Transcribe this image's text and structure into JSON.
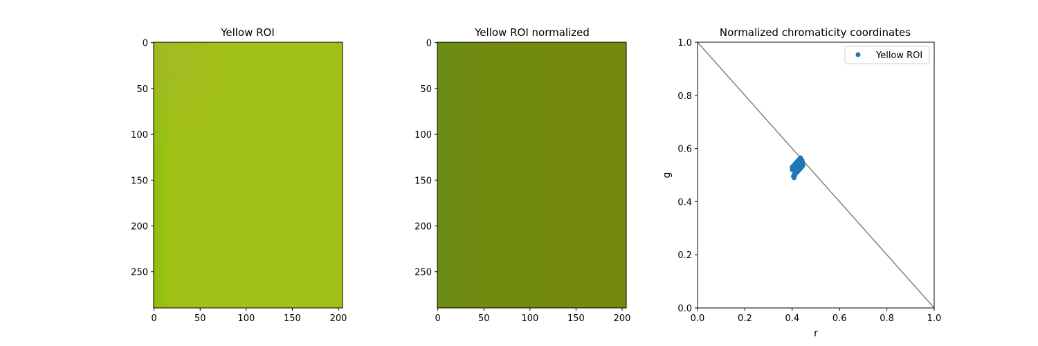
{
  "chart_data": [
    {
      "type": "heatmap",
      "title": "Yellow ROI",
      "xticks": [
        0,
        50,
        100,
        150,
        200
      ],
      "yticks": [
        0,
        50,
        100,
        150,
        200,
        250
      ],
      "xlim": [
        -0.5,
        204.5
      ],
      "ylim": [
        289.5,
        -0.5
      ],
      "colors": {
        "base": "#a2c116",
        "left_edge": "#90c00e",
        "top_left": "#a4b928",
        "bottom": "#9fbd12"
      }
    },
    {
      "type": "heatmap",
      "title": "Yellow ROI normalized",
      "xticks": [
        0,
        50,
        100,
        150,
        200
      ],
      "yticks": [
        0,
        50,
        100,
        150,
        200,
        250
      ],
      "xlim": [
        -0.5,
        204.5
      ],
      "ylim": [
        289.5,
        -0.5
      ],
      "colors": {
        "base": "#728a0f",
        "left_edge": "#6a8b14",
        "right_edge": "#748a0c"
      }
    },
    {
      "type": "scatter",
      "title": "Normalized chromaticity coordinates",
      "xlabel": "r",
      "ylabel": "g",
      "xlim": [
        0,
        1
      ],
      "ylim": [
        0,
        1
      ],
      "xticks": [
        0.0,
        0.2,
        0.4,
        0.6,
        0.8,
        1.0
      ],
      "yticks": [
        0.0,
        0.2,
        0.4,
        0.6,
        0.8,
        1.0
      ],
      "grid": false,
      "legend_position": "top-right",
      "line": {
        "x": [
          0,
          1
        ],
        "y": [
          1,
          0
        ],
        "color": "#808080"
      },
      "series": [
        {
          "name": "Yellow ROI",
          "color": "#1f77b4",
          "cluster": {
            "r_range": [
              0.4,
              0.45
            ],
            "g_range": [
              0.49,
              0.57
            ]
          },
          "points": [
            [
              0.42,
              0.53
            ],
            [
              0.425,
              0.535
            ],
            [
              0.43,
              0.54
            ],
            [
              0.435,
              0.545
            ],
            [
              0.415,
              0.525
            ],
            [
              0.41,
              0.52
            ],
            [
              0.405,
              0.525
            ],
            [
              0.4,
              0.52
            ],
            [
              0.4,
              0.53
            ],
            [
              0.405,
              0.535
            ],
            [
              0.41,
              0.54
            ],
            [
              0.415,
              0.545
            ],
            [
              0.42,
              0.55
            ],
            [
              0.425,
              0.555
            ],
            [
              0.43,
              0.56
            ],
            [
              0.435,
              0.565
            ],
            [
              0.44,
              0.55
            ],
            [
              0.44,
              0.54
            ],
            [
              0.44,
              0.53
            ],
            [
              0.435,
              0.525
            ],
            [
              0.43,
              0.52
            ],
            [
              0.425,
              0.515
            ],
            [
              0.42,
              0.51
            ],
            [
              0.415,
              0.51
            ],
            [
              0.41,
              0.505
            ],
            [
              0.405,
              0.495
            ],
            [
              0.408,
              0.49
            ],
            [
              0.412,
              0.5
            ],
            [
              0.418,
              0.518
            ],
            [
              0.428,
              0.528
            ],
            [
              0.432,
              0.532
            ],
            [
              0.438,
              0.538
            ],
            [
              0.445,
              0.535
            ],
            [
              0.445,
              0.545
            ],
            [
              0.442,
              0.555
            ],
            [
              0.426,
              0.548
            ],
            [
              0.418,
              0.538
            ],
            [
              0.412,
              0.528
            ],
            [
              0.422,
              0.522
            ],
            [
              0.432,
              0.548
            ]
          ]
        }
      ]
    }
  ]
}
